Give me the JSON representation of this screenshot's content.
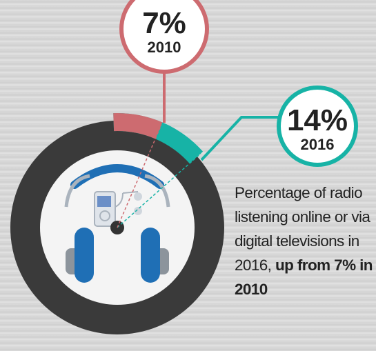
{
  "chart_data": {
    "type": "donut",
    "categories": [
      "2010",
      "2016"
    ],
    "values": [
      7,
      14
    ],
    "value_labels": [
      "7%",
      "14%"
    ],
    "colors": [
      "#cd6b70",
      "#17b3a6"
    ],
    "description": "Percentage of radio listening online or via digital televisions in 2016,",
    "description_bold": "up from 7% in 2010"
  }
}
